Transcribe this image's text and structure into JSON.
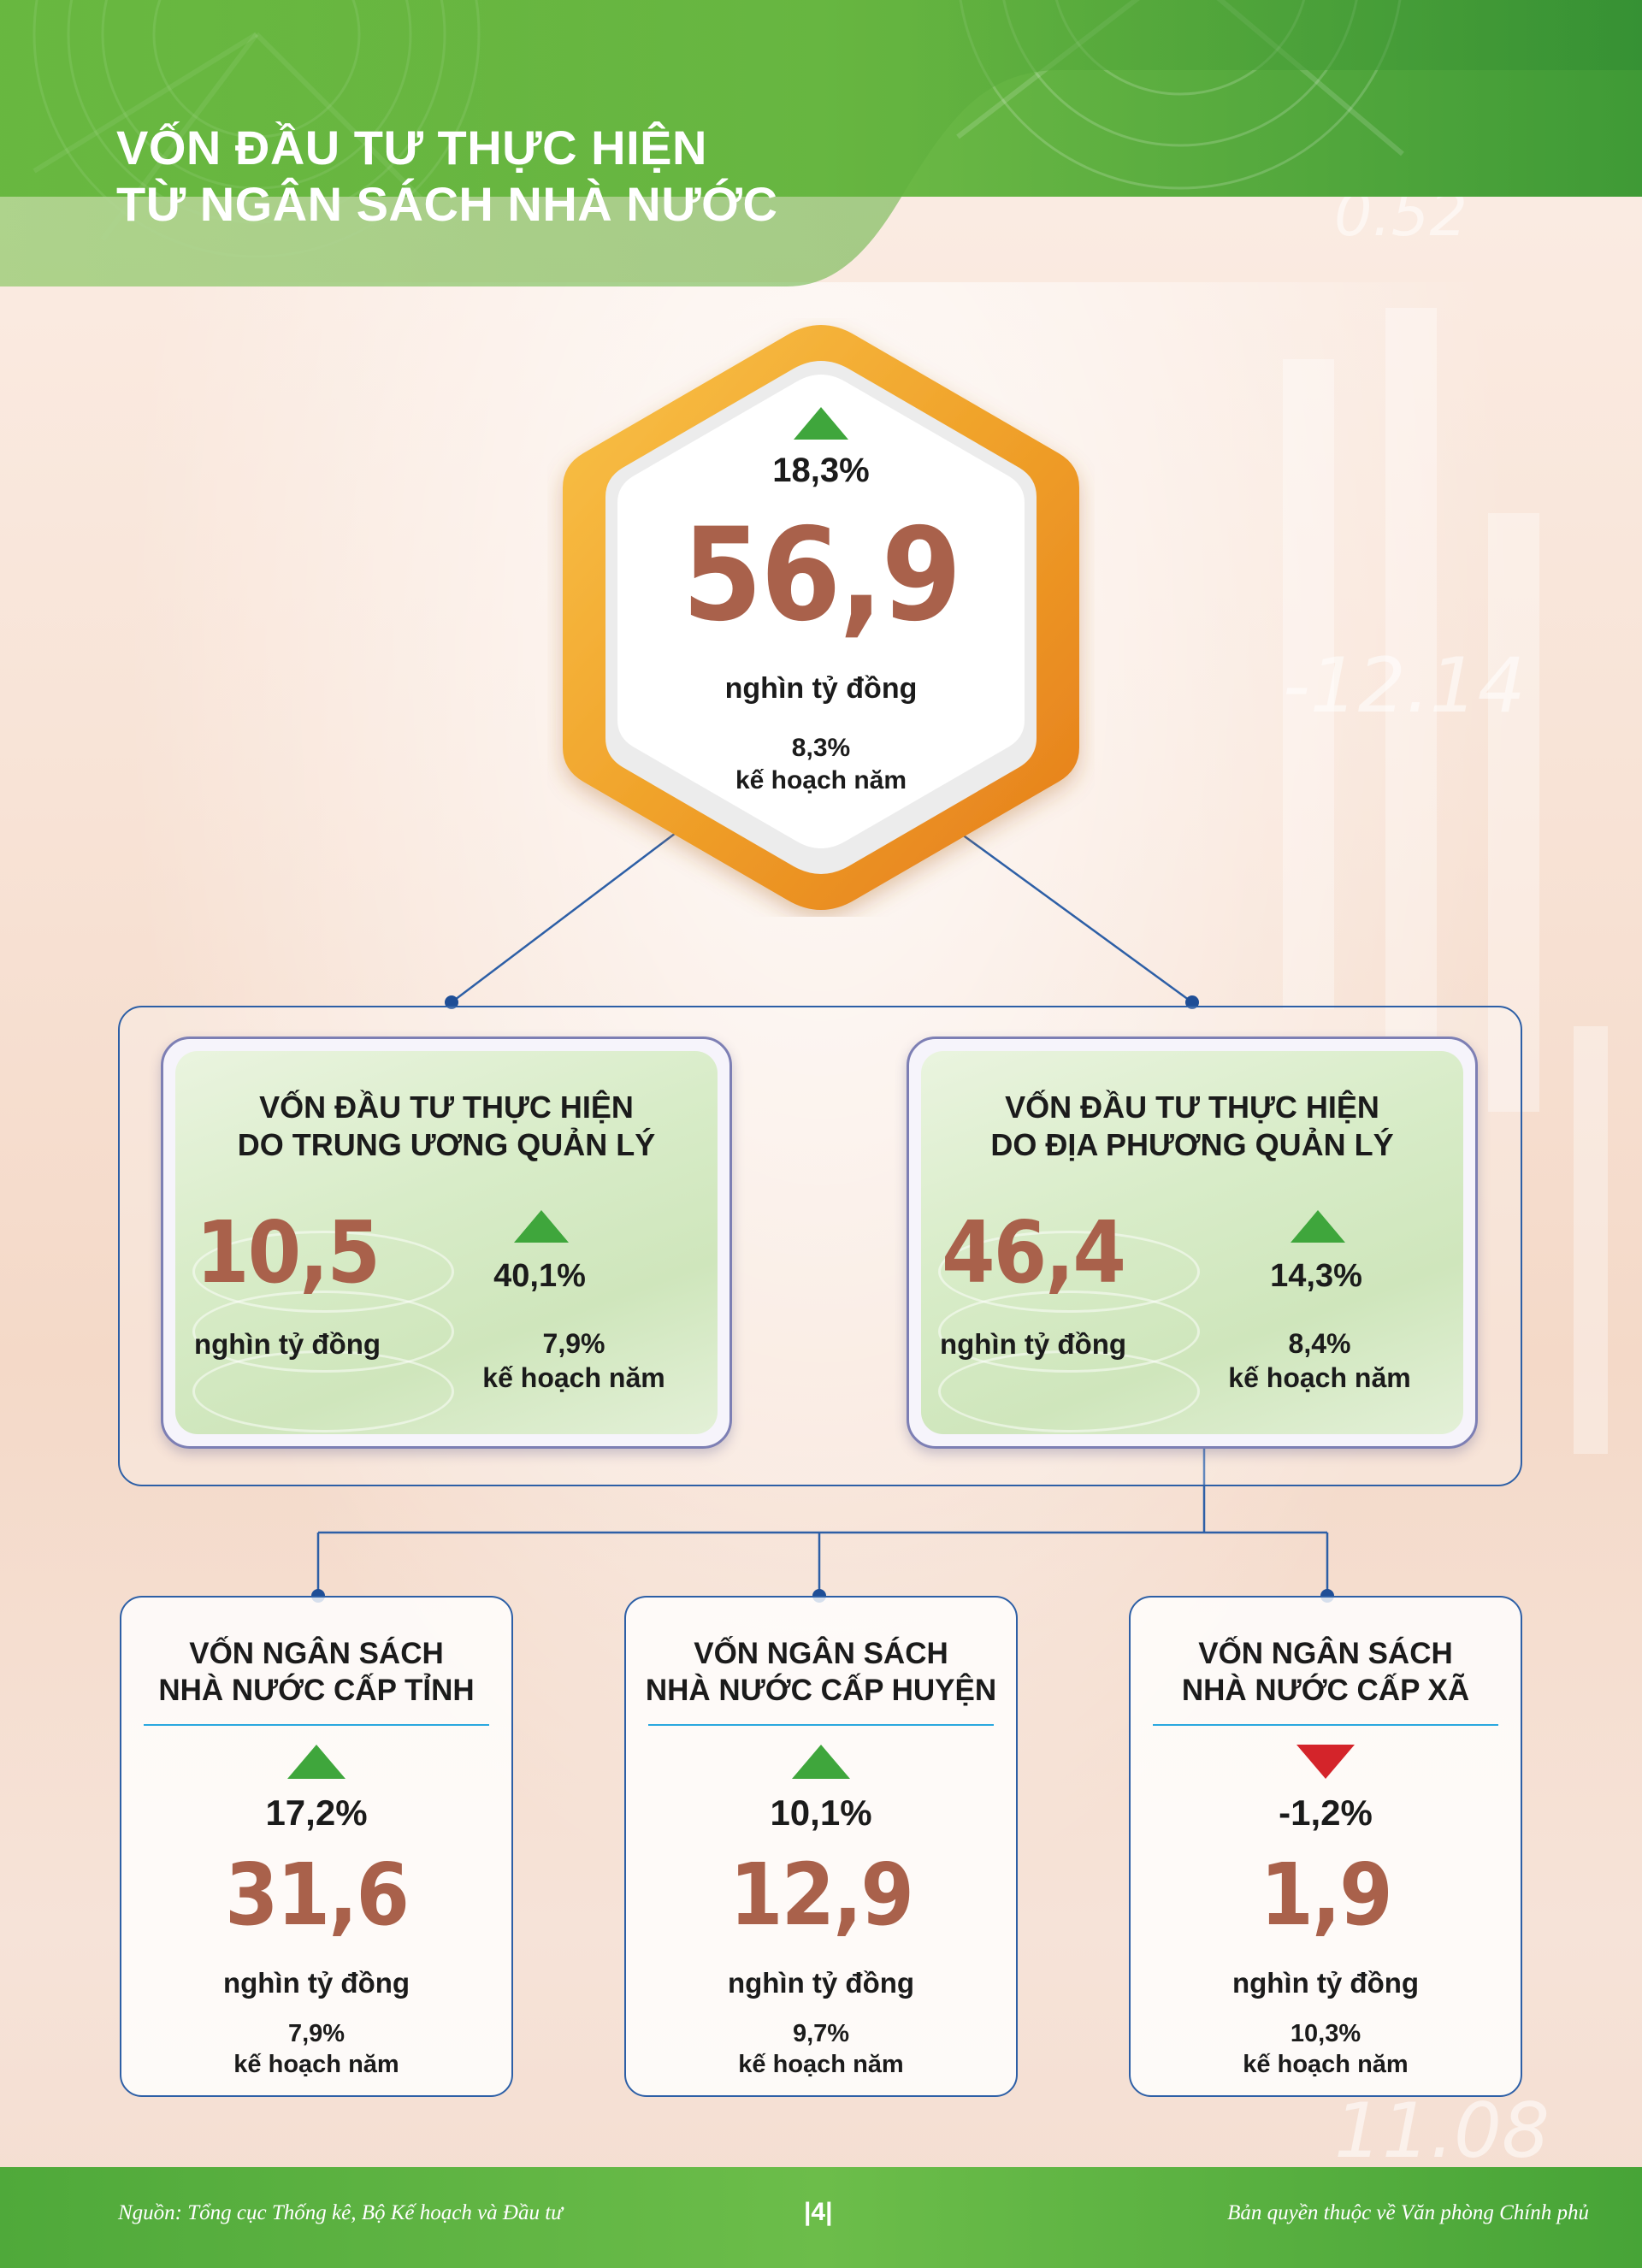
{
  "header": {
    "title_line1": "VỐN ĐẦU TƯ THỰC HIỆN",
    "title_line2": "TỪ NGÂN SÁCH NHÀ NƯỚC"
  },
  "colors": {
    "header_green": "#6fbb46",
    "value_brown": "#a9614b",
    "up_green": "#3fa63c",
    "down_red": "#d4242a",
    "connector_blue": "#2d5fa6",
    "hexagon_orange": "#f0a22a"
  },
  "background_numbers": [
    "-12.14",
    "0.52",
    "11.08"
  ],
  "total": {
    "trend": "up",
    "change": "18,3%",
    "value": "56,9",
    "unit": "nghìn tỷ đồng",
    "plan_pct": "8,3%",
    "plan_label": "kế hoạch năm"
  },
  "central": {
    "title_line1": "VỐN ĐẦU TƯ THỰC HIỆN",
    "title_line2": "DO TRUNG ƯƠNG QUẢN LÝ",
    "trend": "up",
    "value": "10,5",
    "unit": "nghìn tỷ đồng",
    "change": "40,1%",
    "plan_pct": "7,9%",
    "plan_label": "kế hoạch năm"
  },
  "local": {
    "title_line1": "VỐN ĐẦU TƯ THỰC HIỆN",
    "title_line2": "DO ĐỊA PHƯƠNG QUẢN LÝ",
    "trend": "up",
    "value": "46,4",
    "unit": "nghìn tỷ đồng",
    "change": "14,3%",
    "plan_pct": "8,4%",
    "plan_label": "kế hoạch năm"
  },
  "levels": [
    {
      "title_line1": "VỐN NGÂN SÁCH",
      "title_line2": "NHÀ NƯỚC CẤP TỈNH",
      "trend": "up",
      "change": "17,2%",
      "value": "31,6",
      "unit": "nghìn tỷ đồng",
      "plan_pct": "7,9%",
      "plan_label": "kế hoạch năm"
    },
    {
      "title_line1": "VỐN NGÂN SÁCH",
      "title_line2": "NHÀ NƯỚC CẤP HUYỆN",
      "trend": "up",
      "change": "10,1%",
      "value": "12,9",
      "unit": "nghìn tỷ đồng",
      "plan_pct": "9,7%",
      "plan_label": "kế hoạch năm"
    },
    {
      "title_line1": "VỐN NGÂN SÁCH",
      "title_line2": "NHÀ NƯỚC CẤP XÃ",
      "trend": "down",
      "change": "-1,2%",
      "value": "1,9",
      "unit": "nghìn tỷ đồng",
      "plan_pct": "10,3%",
      "plan_label": "kế hoạch năm"
    }
  ],
  "footer": {
    "source": "Nguồn: Tổng cục Thống kê, Bộ Kế hoạch và Đầu tư",
    "page": "|4|",
    "copyright": "Bản quyền thuộc về Văn phòng Chính phủ"
  }
}
